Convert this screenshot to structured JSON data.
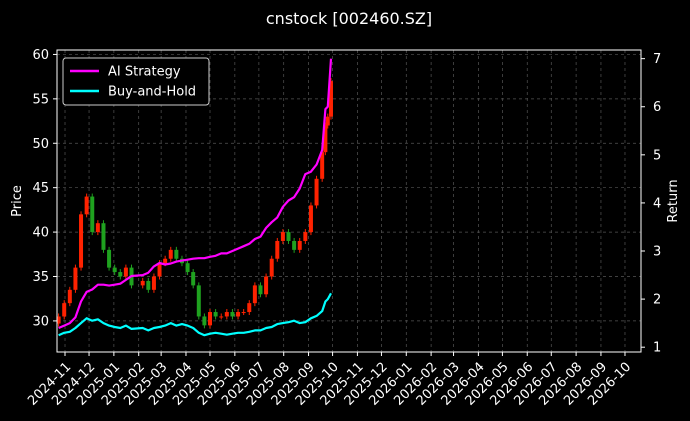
{
  "chart_data": {
    "type": "line",
    "title": "cnstock [002460.SZ]",
    "xlabel": "",
    "ylabel": "Price",
    "y2label": "Return",
    "ylim": [
      26.5,
      60.5
    ],
    "y2lim": [
      0.9,
      7.18
    ],
    "y_ticks": [
      30,
      35,
      40,
      45,
      50,
      55,
      60
    ],
    "y2_ticks": [
      1,
      2,
      3,
      4,
      5,
      6,
      7
    ],
    "x_ticks": [
      "2024-11",
      "2024-12",
      "2025-01",
      "2025-02",
      "2025-03",
      "2025-04",
      "2025-05",
      "2025-06",
      "2025-07",
      "2025-08",
      "2025-09",
      "2025-10",
      "2025-11",
      "2025-12",
      "2026-01",
      "2026-02",
      "2026-03",
      "2026-04",
      "2026-05",
      "2026-06",
      "2026-07",
      "2026-08",
      "2026-09",
      "2026-10"
    ],
    "xlim": [
      "2024-10-22",
      "2026-10-21"
    ],
    "grid": true,
    "legend": "upper-left",
    "colors": {
      "background": "#000000",
      "grid": "#555555",
      "ai_strategy": "#ff00ff",
      "buy_and_hold": "#00ffff",
      "candle_up": "#ff2200",
      "candle_down": "#1fa21f"
    },
    "series": [
      {
        "name": "AI Strategy",
        "axis": "right",
        "x": [
          "2024-10-24",
          "2024-10-31",
          "2024-11-07",
          "2024-11-14",
          "2024-11-21",
          "2024-11-28",
          "2024-12-05",
          "2024-12-12",
          "2024-12-19",
          "2024-12-26",
          "2025-01-02",
          "2025-01-09",
          "2025-01-16",
          "2025-01-23",
          "2025-02-06",
          "2025-02-13",
          "2025-02-20",
          "2025-02-27",
          "2025-03-06",
          "2025-03-13",
          "2025-03-20",
          "2025-03-27",
          "2025-04-03",
          "2025-04-10",
          "2025-04-17",
          "2025-04-24",
          "2025-05-01",
          "2025-05-08",
          "2025-05-15",
          "2025-05-22",
          "2025-05-29",
          "2025-06-05",
          "2025-06-12",
          "2025-06-19",
          "2025-06-26",
          "2025-07-03",
          "2025-07-10",
          "2025-07-17",
          "2025-07-24",
          "2025-07-31",
          "2025-08-07",
          "2025-08-14",
          "2025-08-21",
          "2025-08-28",
          "2025-09-04",
          "2025-09-11",
          "2025-09-18",
          "2025-09-22",
          "2025-09-25",
          "2025-09-29"
        ],
        "values": [
          1.4,
          1.45,
          1.5,
          1.62,
          1.95,
          2.15,
          2.2,
          2.3,
          2.3,
          2.28,
          2.3,
          2.32,
          2.4,
          2.48,
          2.5,
          2.55,
          2.68,
          2.75,
          2.72,
          2.74,
          2.78,
          2.8,
          2.82,
          2.84,
          2.85,
          2.85,
          2.88,
          2.9,
          2.95,
          2.95,
          3.0,
          3.05,
          3.1,
          3.15,
          3.25,
          3.3,
          3.48,
          3.6,
          3.7,
          3.92,
          4.05,
          4.12,
          4.3,
          4.6,
          4.65,
          4.8,
          5.1,
          5.95,
          6.0,
          7.0
        ]
      },
      {
        "name": "Buy-and-Hold",
        "axis": "right",
        "x": [
          "2024-10-24",
          "2024-10-31",
          "2024-11-07",
          "2024-11-14",
          "2024-11-21",
          "2024-11-28",
          "2024-12-05",
          "2024-12-12",
          "2024-12-19",
          "2024-12-26",
          "2025-01-02",
          "2025-01-09",
          "2025-01-16",
          "2025-01-23",
          "2025-02-06",
          "2025-02-13",
          "2025-02-20",
          "2025-02-27",
          "2025-03-06",
          "2025-03-13",
          "2025-03-20",
          "2025-03-27",
          "2025-04-03",
          "2025-04-10",
          "2025-04-17",
          "2025-04-24",
          "2025-05-01",
          "2025-05-08",
          "2025-05-15",
          "2025-05-22",
          "2025-05-29",
          "2025-06-05",
          "2025-06-12",
          "2025-06-19",
          "2025-06-26",
          "2025-07-03",
          "2025-07-10",
          "2025-07-17",
          "2025-07-24",
          "2025-07-31",
          "2025-08-07",
          "2025-08-14",
          "2025-08-21",
          "2025-08-28",
          "2025-09-04",
          "2025-09-11",
          "2025-09-18",
          "2025-09-22",
          "2025-09-25",
          "2025-09-29"
        ],
        "values": [
          1.25,
          1.3,
          1.32,
          1.4,
          1.5,
          1.6,
          1.55,
          1.58,
          1.5,
          1.45,
          1.42,
          1.4,
          1.45,
          1.38,
          1.4,
          1.35,
          1.4,
          1.42,
          1.45,
          1.5,
          1.45,
          1.48,
          1.45,
          1.4,
          1.3,
          1.25,
          1.28,
          1.3,
          1.28,
          1.26,
          1.28,
          1.3,
          1.3,
          1.32,
          1.35,
          1.35,
          1.4,
          1.42,
          1.48,
          1.5,
          1.52,
          1.55,
          1.5,
          1.52,
          1.6,
          1.65,
          1.75,
          1.95,
          2.0,
          2.12
        ]
      }
    ],
    "candles": {
      "axis": "left",
      "x": [
        "2024-10-24",
        "2024-10-31",
        "2024-11-07",
        "2024-11-14",
        "2024-11-21",
        "2024-11-28",
        "2024-12-05",
        "2024-12-12",
        "2024-12-19",
        "2024-12-26",
        "2025-01-02",
        "2025-01-09",
        "2025-01-16",
        "2025-01-23",
        "2025-02-06",
        "2025-02-13",
        "2025-02-20",
        "2025-02-27",
        "2025-03-06",
        "2025-03-13",
        "2025-03-20",
        "2025-03-27",
        "2025-04-03",
        "2025-04-10",
        "2025-04-17",
        "2025-04-24",
        "2025-05-01",
        "2025-05-08",
        "2025-05-15",
        "2025-05-22",
        "2025-05-29",
        "2025-06-05",
        "2025-06-12",
        "2025-06-19",
        "2025-06-26",
        "2025-07-03",
        "2025-07-10",
        "2025-07-17",
        "2025-07-24",
        "2025-07-31",
        "2025-08-07",
        "2025-08-14",
        "2025-08-21",
        "2025-08-28",
        "2025-09-04",
        "2025-09-11",
        "2025-09-18",
        "2025-09-22",
        "2025-09-25",
        "2025-09-29"
      ],
      "close": [
        30.5,
        32,
        33.5,
        36,
        42,
        44,
        40,
        41,
        38,
        36,
        35.5,
        35,
        36,
        34,
        34.5,
        33.5,
        35,
        36.5,
        37,
        38,
        37,
        36.5,
        35.5,
        34,
        30.5,
        29.5,
        31,
        30.5,
        30.5,
        31,
        30.5,
        31,
        31,
        32,
        34,
        33,
        35,
        37,
        39,
        40,
        39,
        38,
        39,
        40,
        43,
        46,
        49,
        52,
        53,
        57
      ]
    }
  }
}
